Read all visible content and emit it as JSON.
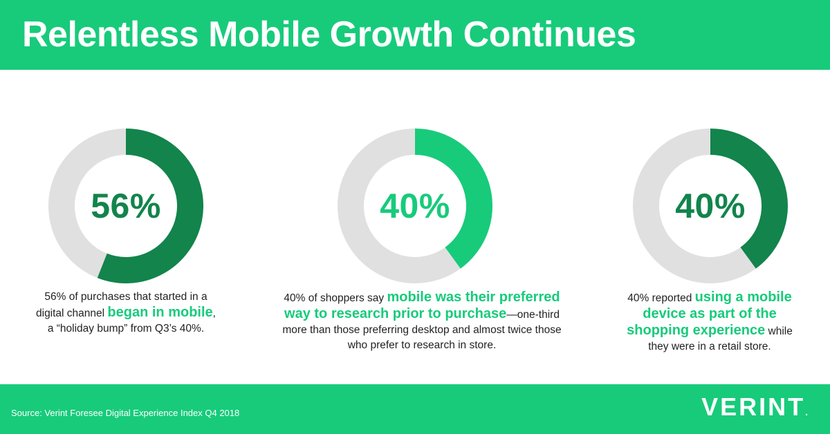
{
  "header": {
    "title": "Relentless Mobile Growth Continues"
  },
  "colors": {
    "dark_green": "#12844c",
    "bright_green": "#17cb7b",
    "track_gray": "#e0e0e0",
    "text": "#222222"
  },
  "chart_data": [
    {
      "type": "pie",
      "label": "56%",
      "values": [
        56,
        44
      ],
      "color": "#12844c",
      "caption": {
        "l1": "56% of purchases that started in a",
        "l2a": "digital channel ",
        "l2hl": "began in mobile",
        "l2b": ",",
        "l3": "a “holiday bump” from Q3’s 40%."
      }
    },
    {
      "type": "pie",
      "label": "40%",
      "values": [
        40,
        60
      ],
      "color": "#17cb7b",
      "caption": {
        "l1a": "40% of shoppers say ",
        "l1hl": "mobile was their preferred",
        "l2hl": "way to research prior to purchase",
        "l2b": "—one-third",
        "l3": "more than those preferring desktop and almost twice those",
        "l4": "who prefer to research in store."
      }
    },
    {
      "type": "pie",
      "label": "40%",
      "values": [
        40,
        60
      ],
      "color": "#12844c",
      "caption": {
        "l1a": "40% reported ",
        "l1hl": "using a mobile",
        "l2hl": "device as part of the",
        "l3hl": "shopping experience",
        "l3b": " while",
        "l4": "they were in a retail store."
      }
    }
  ],
  "footer": {
    "source": "Source: Verint Foresee Digital Experience Index Q4 2018",
    "logo": "VERINT",
    "logo_mark": "."
  }
}
